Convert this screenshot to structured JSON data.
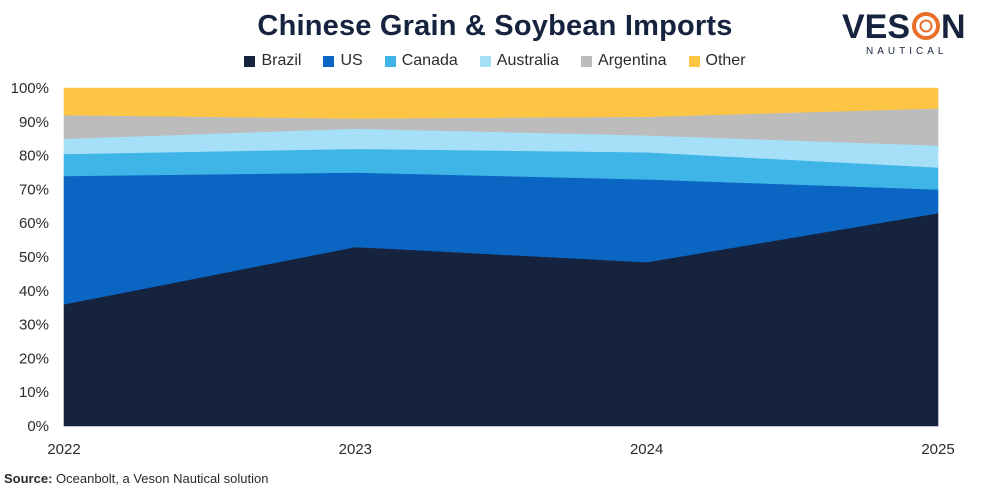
{
  "colors": {
    "title": "#16233f",
    "logo_text": "#16233f",
    "logo_accent": "#e8702a"
  },
  "logo": {
    "word_left": "VES",
    "word_right": "N",
    "sub": "NAUTICAL"
  },
  "source": {
    "label": "Source:",
    "text": " Oceanbolt, a Veson Nautical solution"
  },
  "chart_data": {
    "type": "area",
    "stacked": true,
    "normalized": true,
    "title": "Chinese Grain & Soybean Imports",
    "xlabel": "",
    "ylabel": "",
    "x": [
      "2022",
      "2023",
      "2024",
      "2025"
    ],
    "ylim": [
      0,
      100
    ],
    "yticks": [
      "0%",
      "10%",
      "20%",
      "30%",
      "40%",
      "50%",
      "60%",
      "70%",
      "80%",
      "90%",
      "100%"
    ],
    "legend_position": "top-center",
    "series": [
      {
        "name": "Brazil",
        "color": "#16233f",
        "values": [
          36,
          53,
          48.5,
          63
        ]
      },
      {
        "name": "US",
        "color": "#0b66c3",
        "values": [
          38,
          22,
          24.5,
          7
        ]
      },
      {
        "name": "Canada",
        "color": "#3fb4e7",
        "values": [
          6.5,
          7,
          8,
          6.5
        ]
      },
      {
        "name": "Australia",
        "color": "#a6e0f8",
        "values": [
          4.5,
          6,
          5,
          6.5
        ]
      },
      {
        "name": "Argentina",
        "color": "#bcbcbc",
        "values": [
          7,
          3,
          5.5,
          11
        ]
      },
      {
        "name": "Other",
        "color": "#fec544",
        "values": [
          8,
          9,
          8.5,
          6
        ]
      }
    ]
  }
}
